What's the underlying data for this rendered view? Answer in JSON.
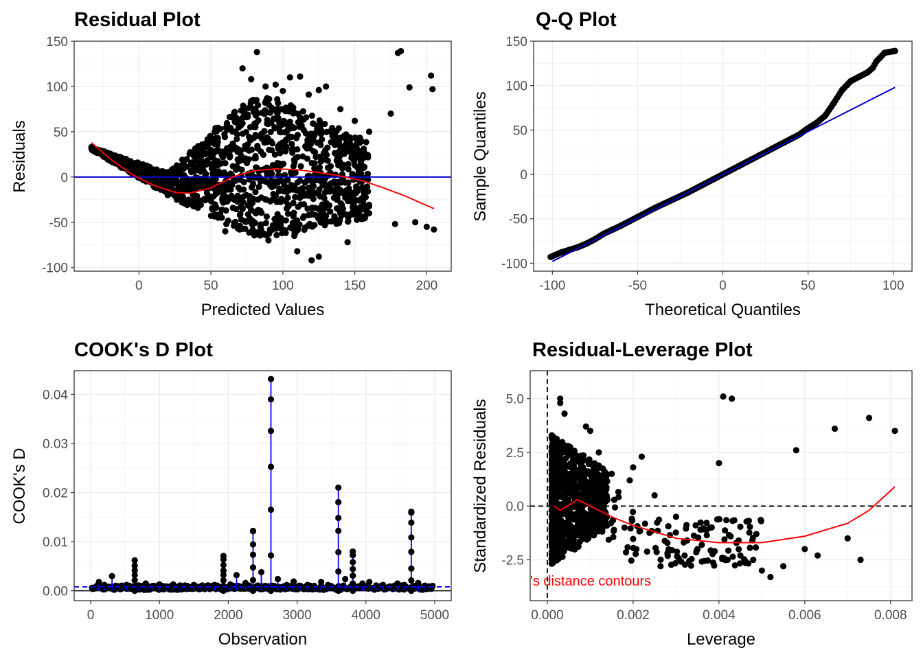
{
  "colors": {
    "points": "#000000",
    "smooth": "#ff0000",
    "reference": "#0000cc",
    "cook_stems": "#0000ff",
    "grid_major": "#ebebeb",
    "grid_minor": "#f5f5f5",
    "panel_border": "#333333"
  },
  "chart_data": [
    {
      "type": "scatter",
      "title": "Residual Plot",
      "xlabel": "Predicted Values",
      "ylabel": "Residuals",
      "xlim": [
        -45,
        217
      ],
      "ylim": [
        -104,
        150
      ],
      "xticks": [
        0,
        50,
        100,
        150,
        200
      ],
      "yticks": [
        -100,
        -50,
        0,
        50,
        100,
        150
      ],
      "hline": {
        "y": 0,
        "color": "#0000cc"
      },
      "smooth": {
        "x": [
          -33,
          -20,
          -5,
          10,
          25,
          35,
          50,
          65,
          80,
          95,
          110,
          125,
          140,
          155,
          170,
          185,
          205
        ],
        "y": [
          38,
          20,
          3,
          -9,
          -17,
          -18,
          -12,
          0,
          7,
          9,
          8,
          5,
          1,
          -4,
          -12,
          -21,
          -35
        ]
      },
      "points": {
        "x": [
          -33,
          -28,
          -20,
          -12,
          -5,
          5,
          12,
          20,
          72,
          78,
          82,
          88,
          95,
          100,
          105,
          112,
          118,
          125,
          130,
          140,
          150,
          160,
          175,
          180,
          182,
          188,
          203,
          204,
          178,
          192,
          200,
          205,
          120,
          125,
          90,
          108,
          60,
          70,
          160,
          140,
          145,
          110
        ],
        "y": [
          33,
          28,
          20,
          12,
          5,
          -5,
          -12,
          -20,
          120,
          108,
          138,
          100,
          102,
          95,
          110,
          111,
          91,
          96,
          100,
          75,
          62,
          50,
          70,
          137,
          139,
          99,
          112,
          97,
          -52,
          -50,
          -55,
          -58,
          -92,
          -88,
          -70,
          -65,
          -60,
          -58,
          -40,
          -38,
          -72,
          -82
        ]
      },
      "band": {
        "x": [
          -33,
          20,
          50,
          80,
          100,
          130,
          160
        ],
        "top": [
          33,
          5,
          50,
          90,
          85,
          60,
          40
        ],
        "bottom": [
          30,
          -20,
          -45,
          -65,
          -65,
          -55,
          -45
        ]
      }
    },
    {
      "type": "scatter",
      "title": "Q-Q Plot",
      "xlabel": "Theoretical Quantiles",
      "ylabel": "Sample Quantiles",
      "xlim": [
        -111,
        111
      ],
      "ylim": [
        -109,
        150
      ],
      "xticks": [
        -100,
        -50,
        0,
        50,
        100
      ],
      "yticks": [
        -100,
        -50,
        0,
        50,
        100,
        150
      ],
      "refline": {
        "x": [
          -100,
          101
        ],
        "y": [
          -98,
          98
        ],
        "color": "#0000cc"
      },
      "points": {
        "x": [
          -101,
          -95,
          -90,
          -85,
          -80,
          -75,
          -70,
          -60,
          -50,
          -40,
          -30,
          -20,
          -10,
          0,
          10,
          20,
          30,
          40,
          45,
          50,
          55,
          60,
          65,
          70,
          75,
          80,
          85,
          88,
          90,
          95,
          101
        ],
        "y": [
          -93,
          -88,
          -85,
          -82,
          -78,
          -73,
          -67,
          -58,
          -48,
          -38,
          -29,
          -20,
          -10,
          0,
          10,
          20,
          30,
          40,
          45,
          52,
          58,
          66,
          80,
          95,
          105,
          110,
          115,
          120,
          127,
          137,
          139
        ]
      }
    },
    {
      "type": "line",
      "title": "COOK's D Plot",
      "xlabel": "Observation",
      "ylabel": "COOK's D",
      "xlim": [
        -240,
        5240
      ],
      "ylim": [
        -0.002,
        0.0448
      ],
      "xticks": [
        0,
        1000,
        2000,
        3000,
        4000,
        5000
      ],
      "xtick_labels": [
        "0",
        "1000",
        "2000",
        "3000",
        "4000",
        "5000"
      ],
      "yticks": [
        0,
        0.01,
        0.02,
        0.03,
        0.04
      ],
      "ytick_labels": [
        "0.00",
        "0.01",
        "0.02",
        "0.03",
        "0.04"
      ],
      "threshold": 0.0008,
      "stems": {
        "x": [
          30,
          120,
          200,
          310,
          420,
          520,
          640,
          700,
          800,
          900,
          1000,
          1100,
          1200,
          1300,
          1400,
          1500,
          1600,
          1700,
          1800,
          1930,
          2030,
          2120,
          2250,
          2360,
          2480,
          2620,
          2720,
          2850,
          2950,
          3050,
          3150,
          3250,
          3350,
          3450,
          3600,
          3700,
          3810,
          3950,
          4050,
          4150,
          4250,
          4350,
          4460,
          4560,
          4660,
          4760,
          4850,
          4950
        ],
        "y": [
          0.0004,
          0.0018,
          0.0012,
          0.003,
          0.0009,
          0.0012,
          0.0062,
          0.0011,
          0.0015,
          0.001,
          0.0013,
          0.0009,
          0.0013,
          0.0011,
          0.001,
          0.0012,
          0.0009,
          0.0011,
          0.0012,
          0.0071,
          0.0013,
          0.0032,
          0.0016,
          0.0122,
          0.0038,
          0.0431,
          0.0024,
          0.0012,
          0.0019,
          0.001,
          0.0012,
          0.001,
          0.0018,
          0.0012,
          0.021,
          0.0024,
          0.008,
          0.0015,
          0.0018,
          0.0011,
          0.0012,
          0.0009,
          0.0015,
          0.0012,
          0.0161,
          0.0016,
          0.001,
          0.0004
        ]
      }
    },
    {
      "type": "scatter",
      "title": "Residual-Leverage Plot",
      "xlabel": "Leverage",
      "ylabel": "Standardized Residuals",
      "xlim": [
        -0.0004,
        0.0085
      ],
      "ylim": [
        -4.4,
        6.3
      ],
      "xticks": [
        0,
        0.002,
        0.004,
        0.006,
        0.008
      ],
      "xtick_labels": [
        "0.000",
        "0.002",
        "0.004",
        "0.006",
        "0.008"
      ],
      "yticks": [
        -2.5,
        0,
        2.5,
        5.0
      ],
      "ytick_labels": [
        "-2.5",
        "0.0",
        "2.5",
        "5.0"
      ],
      "annotation": "'s distance contours",
      "smooth": {
        "x": [
          0.00015,
          0.0003,
          0.0005,
          0.0007,
          0.001,
          0.0015,
          0.002,
          0.003,
          0.004,
          0.005,
          0.006,
          0.007,
          0.0075,
          0.0081
        ],
        "y": [
          0,
          -0.2,
          0.05,
          0.3,
          0,
          -0.5,
          -0.9,
          -1.5,
          -1.7,
          -1.7,
          -1.4,
          -0.8,
          -0.2,
          0.9
        ]
      },
      "points": {
        "x": [
          0.0003,
          0.0003,
          0.0004,
          0.0009,
          0.001,
          0.0012,
          0.0015,
          0.002,
          0.0025,
          0.003,
          0.0035,
          0.004,
          0.0041,
          0.0043,
          0.0045,
          0.0048,
          0.005,
          0.0052,
          0.0055,
          0.0058,
          0.006,
          0.0063,
          0.0067,
          0.007,
          0.0073,
          0.0075,
          0.0081,
          0.0028,
          0.0032,
          0.0036,
          0.0039,
          0.0042,
          0.0018,
          0.0022
        ],
        "y": [
          5.0,
          4.8,
          4.3,
          3.7,
          3.5,
          2.5,
          1.5,
          1.8,
          0.5,
          -0.5,
          -2.0,
          2.0,
          5.1,
          5.0,
          -2.3,
          -2.5,
          -3.0,
          -3.3,
          -2.8,
          2.6,
          -2.0,
          -2.3,
          3.6,
          -1.5,
          -2.5,
          4.1,
          3.5,
          -2.2,
          -2.3,
          -1.8,
          -2.1,
          -2.5,
          -1.0,
          2.3
        ]
      },
      "cluster": {
        "x_range": [
          0.0001,
          0.0014
        ],
        "y_range": [
          -2.7,
          3.3
        ]
      }
    }
  ]
}
